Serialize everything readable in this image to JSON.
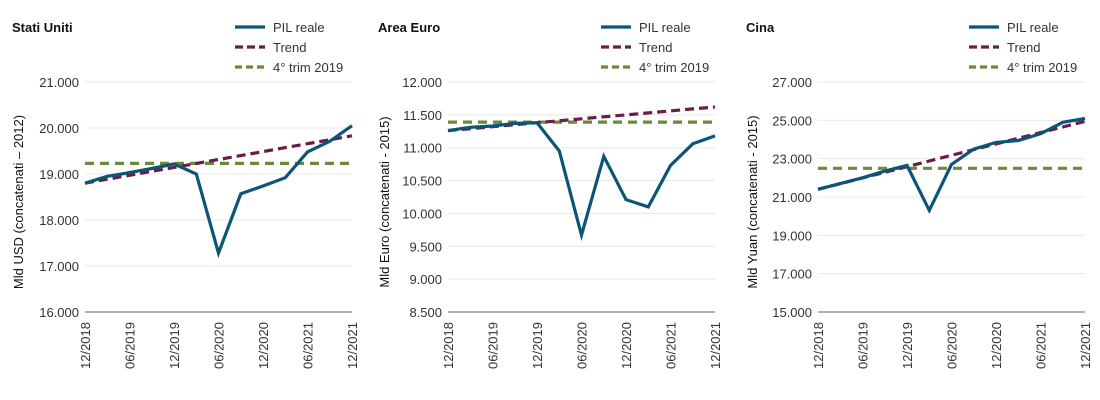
{
  "colors": {
    "gdp": "#0b5577",
    "trend": "#6b1d4a",
    "q4": "#6b8a3a"
  },
  "chart_data": [
    {
      "type": "line",
      "title": "Stati Uniti",
      "ylabel": "Mld USD (concatenati – 2012)",
      "ylim": [
        16000,
        21000
      ],
      "yticks": [
        "16.000",
        "17.000",
        "18.000",
        "19.000",
        "20.000",
        "21.000"
      ],
      "ytick_values": [
        16000,
        17000,
        18000,
        19000,
        20000,
        21000
      ],
      "x": [
        "12/2018",
        "03/2019",
        "06/2019",
        "09/2019",
        "12/2019",
        "03/2020",
        "06/2020",
        "09/2020",
        "12/2020",
        "03/2021",
        "06/2021",
        "09/2021",
        "12/2021"
      ],
      "xtick_labels": [
        "12/2018",
        "06/2019",
        "12/2019",
        "06/2020",
        "12/2020",
        "06/2021",
        "12/2021"
      ],
      "series": [
        {
          "name": "PIL reale",
          "values": [
            18800,
            18950,
            19030,
            19120,
            19220,
            19000,
            17280,
            18570,
            18740,
            18920,
            19480,
            19710,
            20050
          ]
        },
        {
          "name": "Trend",
          "values": [
            18800,
            18886,
            18972,
            19058,
            19143,
            19229,
            19315,
            19401,
            19487,
            19573,
            19659,
            19744,
            19830
          ]
        },
        {
          "name": "4° trim 2019",
          "values": [
            19230,
            19230,
            19230,
            19230,
            19230,
            19230,
            19230,
            19230,
            19230,
            19230,
            19230,
            19230,
            19230
          ]
        }
      ],
      "legend": "top-right",
      "grid": true
    },
    {
      "type": "line",
      "title": "Area Euro",
      "ylabel": "Mld Euro (concatenati - 2015)",
      "ylim": [
        8500,
        12000
      ],
      "yticks": [
        "8.500",
        "9.000",
        "9.500",
        "10.000",
        "10.500",
        "11.000",
        "11.500",
        "12.000"
      ],
      "ytick_values": [
        8500,
        9000,
        9500,
        10000,
        10500,
        11000,
        11500,
        12000
      ],
      "x": [
        "12/2018",
        "03/2019",
        "06/2019",
        "09/2019",
        "12/2019",
        "03/2020",
        "06/2020",
        "09/2020",
        "12/2020",
        "03/2021",
        "06/2021",
        "09/2021",
        "12/2021"
      ],
      "xtick_labels": [
        "12/2018",
        "06/2019",
        "12/2019",
        "06/2020",
        "12/2020",
        "06/2021",
        "12/2021"
      ],
      "series": [
        {
          "name": "PIL reale",
          "values": [
            11260,
            11310,
            11330,
            11370,
            11380,
            10950,
            9670,
            10870,
            10210,
            10100,
            10730,
            11060,
            11180
          ]
        },
        {
          "name": "Trend",
          "values": [
            11260,
            11290,
            11320,
            11350,
            11380,
            11410,
            11440,
            11470,
            11500,
            11530,
            11560,
            11590,
            11620
          ]
        },
        {
          "name": "4° trim 2019",
          "values": [
            11390,
            11390,
            11390,
            11390,
            11390,
            11390,
            11390,
            11390,
            11390,
            11390,
            11390,
            11390,
            11390
          ]
        }
      ],
      "legend": "top-right",
      "grid": true
    },
    {
      "type": "line",
      "title": "Cina",
      "ylabel": "Mld Yuan (concatenati - 2015)",
      "ylim": [
        15000,
        27000
      ],
      "yticks": [
        "15.000",
        "17.000",
        "19.000",
        "21.000",
        "23.000",
        "25.000",
        "27.000"
      ],
      "ytick_values": [
        15000,
        17000,
        19000,
        21000,
        23000,
        25000,
        27000
      ],
      "x": [
        "12/2018",
        "03/2019",
        "06/2019",
        "09/2019",
        "12/2019",
        "03/2020",
        "06/2020",
        "09/2020",
        "12/2020",
        "03/2021",
        "06/2021",
        "09/2021",
        "12/2021"
      ],
      "xtick_labels": [
        "12/2018",
        "06/2019",
        "12/2019",
        "06/2020",
        "12/2020",
        "06/2021",
        "12/2021"
      ],
      "series": [
        {
          "name": "PIL reale",
          "values": [
            21400,
            21700,
            22000,
            22350,
            22650,
            20300,
            22700,
            23500,
            23850,
            23950,
            24300,
            24900,
            25100
          ]
        },
        {
          "name": "Trend",
          "values": [
            21400,
            21696,
            21992,
            22288,
            22583,
            22879,
            23175,
            23471,
            23767,
            24063,
            24358,
            24654,
            24950
          ]
        },
        {
          "name": "4° trim 2019",
          "values": [
            22500,
            22500,
            22500,
            22500,
            22500,
            22500,
            22500,
            22500,
            22500,
            22500,
            22500,
            22500,
            22500
          ]
        }
      ],
      "legend": "top-right",
      "grid": true
    }
  ]
}
